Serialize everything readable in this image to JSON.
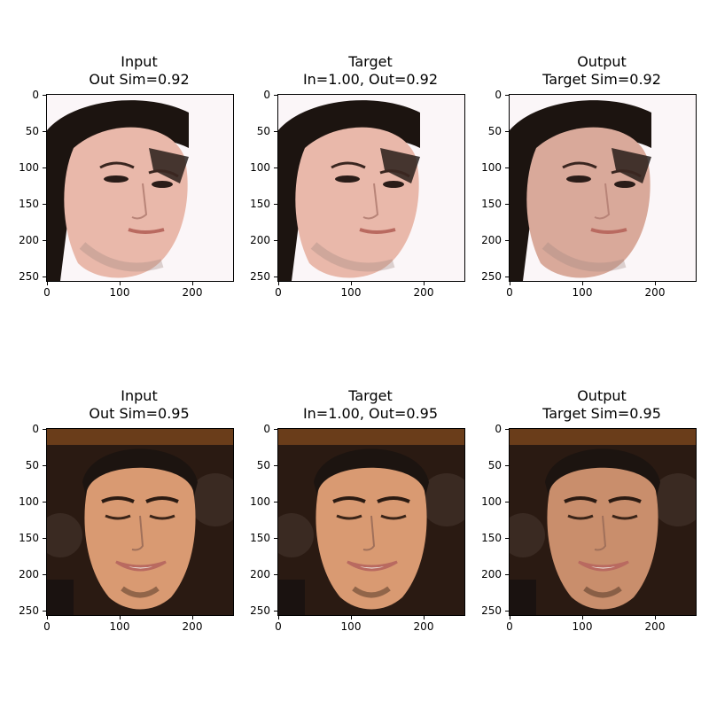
{
  "figure": {
    "panels": [
      {
        "title_line1": "Input",
        "title_line2": "Out Sim=0.92",
        "subject": "face-1"
      },
      {
        "title_line1": "Target",
        "title_line2": "In=1.00, Out=0.92",
        "subject": "face-1"
      },
      {
        "title_line1": "Output",
        "title_line2": "Target Sim=0.92",
        "subject": "face-1"
      },
      {
        "title_line1": "Input",
        "title_line2": "Out Sim=0.95",
        "subject": "face-2"
      },
      {
        "title_line1": "Target",
        "title_line2": "In=1.00, Out=0.95",
        "subject": "face-2"
      },
      {
        "title_line1": "Output",
        "title_line2": "Target Sim=0.95",
        "subject": "face-2"
      }
    ],
    "y_ticks": [
      "0",
      "50",
      "100",
      "150",
      "200",
      "250"
    ],
    "x_ticks": [
      "0",
      "100",
      "200"
    ],
    "y_tick_values": [
      0,
      50,
      100,
      150,
      200,
      250
    ],
    "x_tick_values": [
      0,
      100,
      200
    ],
    "axis_max": 256,
    "colors": {
      "skin_light": "#e9b8aa",
      "skin_warm": "#d99a72",
      "hair": "#1c1410",
      "bg_light": "#fbf6f8",
      "bg_dark": "#2a1a12",
      "lip": "#b96a60"
    }
  }
}
